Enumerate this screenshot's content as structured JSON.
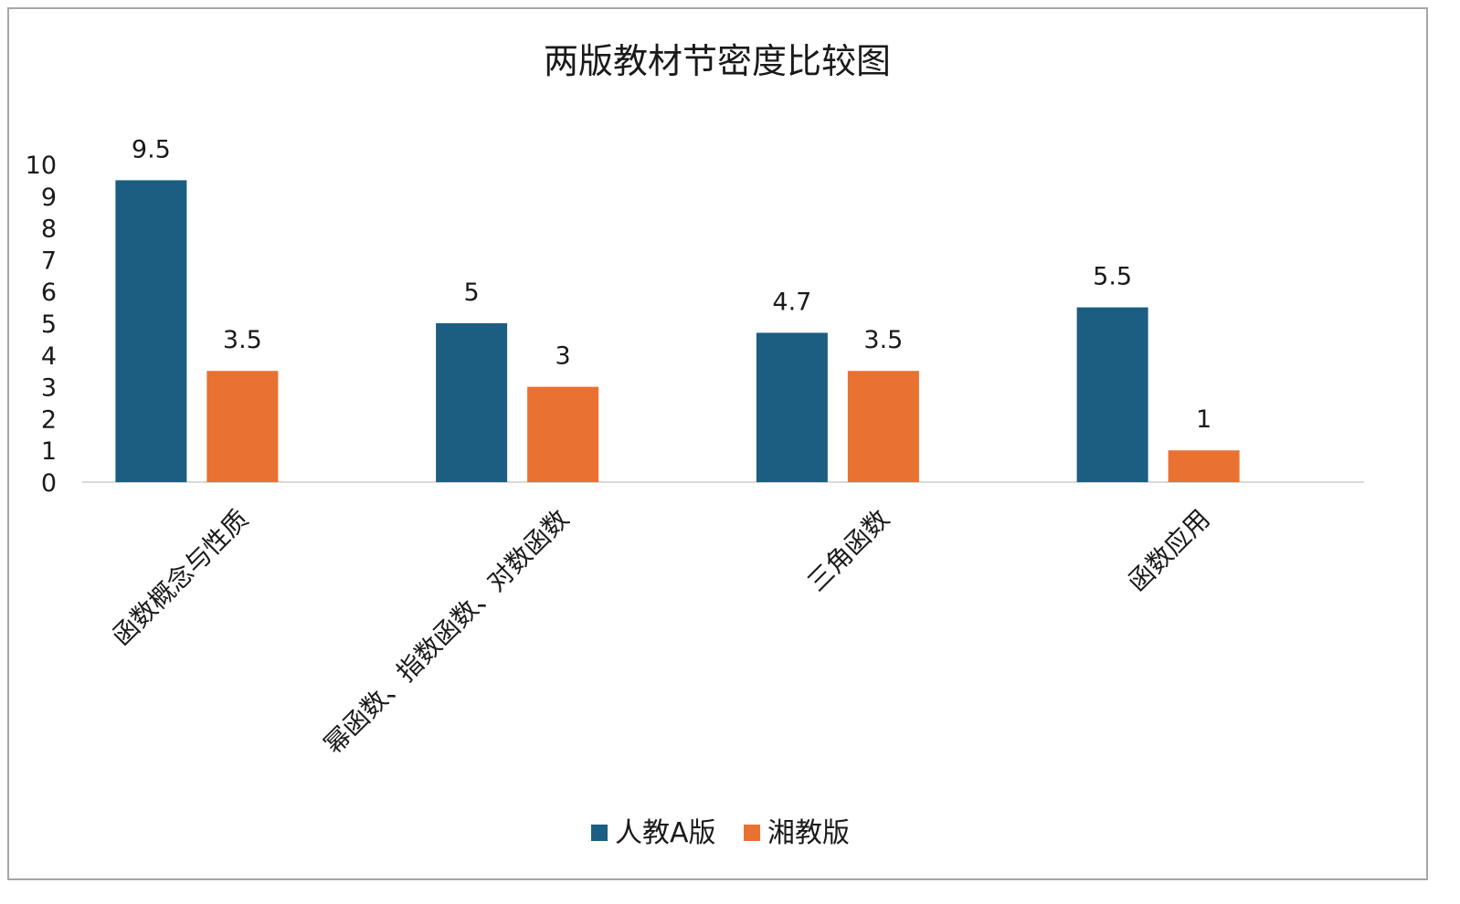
{
  "chart_data": {
    "type": "bar",
    "title": "两版教材节密度比较图",
    "categories": [
      "函数概念与性质",
      "幂函数、指数函数、对数函数",
      "三角函数",
      "函数应用"
    ],
    "series": [
      {
        "name": "人教A版",
        "color": "#1b5e82",
        "values": [
          9.5,
          5,
          4.7,
          5.5
        ]
      },
      {
        "name": "湘教版",
        "color": "#e97132",
        "values": [
          3.5,
          3,
          3.5,
          1
        ]
      }
    ],
    "data_labels": [
      [
        "9.5",
        "5",
        "4.7",
        "5.5"
      ],
      [
        "3.5",
        "3",
        "3.5",
        "1"
      ]
    ],
    "y_ticks": [
      "0",
      "1",
      "2",
      "3",
      "4",
      "5",
      "6",
      "7",
      "8",
      "9",
      "10"
    ],
    "ylim": [
      0,
      10
    ],
    "xlabel": "",
    "ylabel": "",
    "grid": false,
    "legend_position": "bottom"
  }
}
